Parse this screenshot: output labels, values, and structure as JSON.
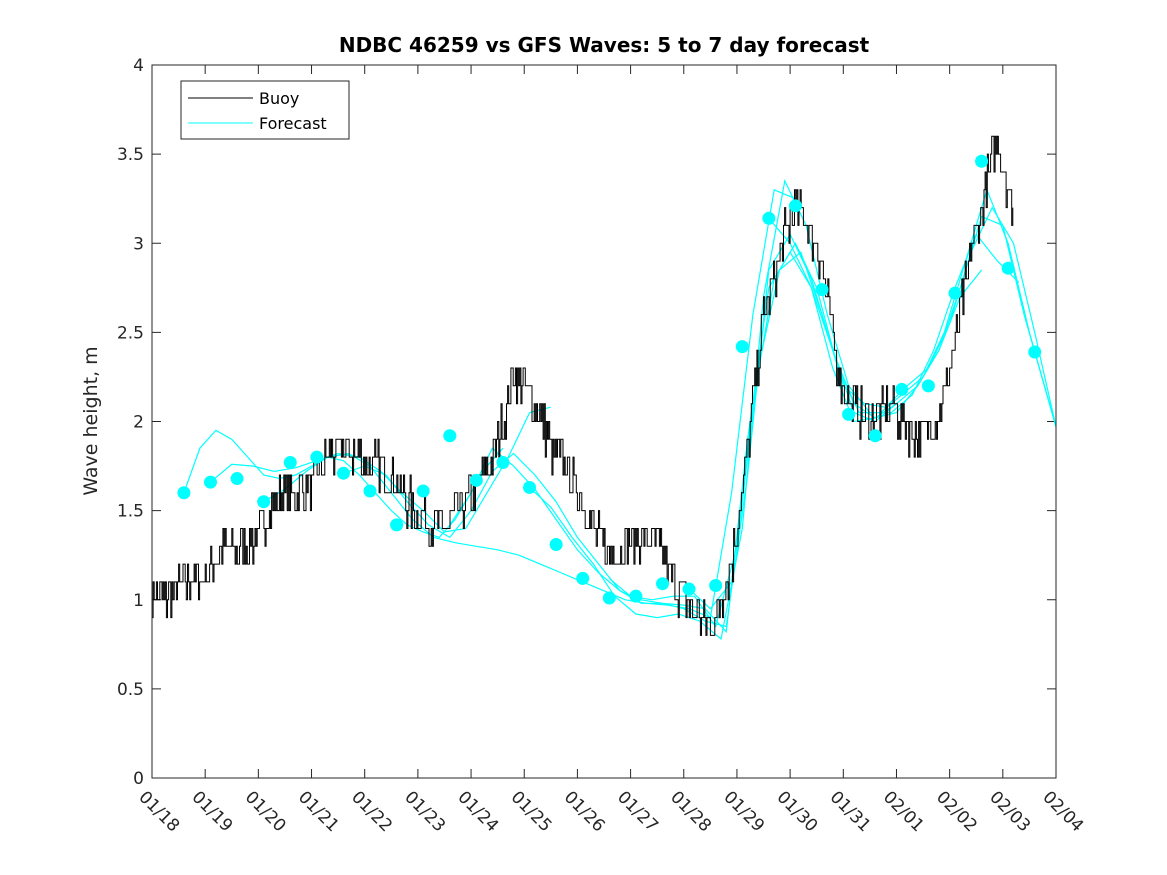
{
  "chart_data": {
    "type": "line",
    "title": "NDBC 46259 vs GFS Waves: 5 to 7 day forecast",
    "xlabel": "",
    "ylabel": "Wave height, m",
    "xlim": [
      0,
      17
    ],
    "ylim": [
      0,
      4
    ],
    "x_tick_labels": [
      "01/18",
      "01/19",
      "01/20",
      "01/21",
      "01/22",
      "01/23",
      "01/24",
      "01/25",
      "01/26",
      "01/27",
      "01/28",
      "01/29",
      "01/30",
      "01/31",
      "02/01",
      "02/02",
      "02/03",
      "02/04"
    ],
    "y_ticks": [
      0,
      0.5,
      1,
      1.5,
      2,
      2.5,
      3,
      3.5,
      4
    ],
    "y_tick_labels": [
      "0",
      "0.5",
      "1",
      "1.5",
      "2",
      "2.5",
      "3",
      "3.5",
      "4"
    ],
    "legend": {
      "position": "top-left",
      "entries": [
        "Buoy",
        "Forecast"
      ]
    },
    "colors": {
      "buoy": "#000000",
      "forecast": "#00ffff",
      "axes": "#262626"
    },
    "buoy_anchors": [
      [
        0.0,
        1.05
      ],
      [
        0.3,
        1.0
      ],
      [
        0.6,
        1.08
      ],
      [
        1.0,
        1.15
      ],
      [
        1.3,
        1.3
      ],
      [
        1.6,
        1.28
      ],
      [
        2.0,
        1.35
      ],
      [
        2.3,
        1.55
      ],
      [
        2.6,
        1.6
      ],
      [
        3.0,
        1.65
      ],
      [
        3.3,
        1.8
      ],
      [
        3.6,
        1.85
      ],
      [
        3.9,
        1.8
      ],
      [
        4.2,
        1.75
      ],
      [
        4.5,
        1.7
      ],
      [
        4.8,
        1.55
      ],
      [
        5.2,
        1.45
      ],
      [
        5.5,
        1.4
      ],
      [
        5.8,
        1.5
      ],
      [
        6.1,
        1.65
      ],
      [
        6.4,
        1.8
      ],
      [
        6.6,
        2.0
      ],
      [
        6.8,
        2.25
      ],
      [
        7.0,
        2.2
      ],
      [
        7.2,
        2.1
      ],
      [
        7.5,
        1.85
      ],
      [
        7.8,
        1.75
      ],
      [
        8.0,
        1.6
      ],
      [
        8.3,
        1.4
      ],
      [
        8.6,
        1.25
      ],
      [
        8.9,
        1.3
      ],
      [
        9.2,
        1.35
      ],
      [
        9.5,
        1.3
      ],
      [
        9.8,
        1.1
      ],
      [
        10.0,
        1.0
      ],
      [
        10.3,
        0.9
      ],
      [
        10.5,
        0.82
      ],
      [
        10.7,
        1.0
      ],
      [
        10.9,
        1.2
      ],
      [
        11.1,
        1.6
      ],
      [
        11.3,
        2.1
      ],
      [
        11.5,
        2.6
      ],
      [
        11.7,
        2.8
      ],
      [
        11.9,
        3.05
      ],
      [
        12.1,
        3.2
      ],
      [
        12.3,
        3.1
      ],
      [
        12.5,
        3.0
      ],
      [
        12.7,
        2.7
      ],
      [
        12.9,
        2.3
      ],
      [
        13.1,
        2.1
      ],
      [
        13.3,
        2.05
      ],
      [
        13.6,
        2.0
      ],
      [
        13.9,
        2.1
      ],
      [
        14.2,
        1.95
      ],
      [
        14.5,
        1.9
      ],
      [
        14.8,
        2.05
      ],
      [
        15.0,
        2.3
      ],
      [
        15.2,
        2.6
      ],
      [
        15.4,
        2.95
      ],
      [
        15.6,
        3.2
      ],
      [
        15.8,
        3.5
      ],
      [
        15.9,
        3.6
      ],
      [
        16.1,
        3.3
      ],
      [
        16.2,
        3.2
      ]
    ],
    "buoy_noise_amplitude": 0.12,
    "forecast_points": {
      "x": [
        0.6,
        1.1,
        1.6,
        2.1,
        2.6,
        3.1,
        3.6,
        4.1,
        4.6,
        5.1,
        5.6,
        6.1,
        6.6,
        7.1,
        7.6,
        8.1,
        8.6,
        9.1,
        9.6,
        10.1,
        10.6,
        11.1,
        11.6,
        12.1,
        12.6,
        13.1,
        13.6,
        14.1,
        14.6,
        15.1,
        15.6,
        16.1,
        16.6
      ],
      "y": [
        1.6,
        1.66,
        1.68,
        1.55,
        1.77,
        1.8,
        1.71,
        1.61,
        1.42,
        1.61,
        1.92,
        1.67,
        1.77,
        1.63,
        1.31,
        1.12,
        1.01,
        1.02,
        1.09,
        1.06,
        1.08,
        2.42,
        3.14,
        3.21,
        2.74,
        2.04,
        1.92,
        2.18,
        2.2,
        2.72,
        3.46,
        2.86,
        2.39
      ]
    },
    "forecast_runs": [
      {
        "x": [
          0.6,
          0.9,
          1.2,
          1.5,
          1.8,
          2.1,
          2.4,
          2.7,
          3.0,
          3.3,
          3.6,
          3.9,
          4.2,
          4.5,
          4.8,
          5.1,
          5.4,
          5.7,
          6.0,
          6.3,
          6.6
        ],
        "y": [
          1.6,
          1.85,
          1.95,
          1.9,
          1.8,
          1.7,
          1.68,
          1.7,
          1.75,
          1.8,
          1.78,
          1.7,
          1.6,
          1.5,
          1.42,
          1.38,
          1.35,
          1.45,
          1.6,
          1.75,
          1.85
        ]
      },
      {
        "x": [
          1.1,
          1.5,
          1.9,
          2.3,
          2.7,
          3.1,
          3.5,
          3.9,
          4.3,
          4.7,
          5.1,
          5.5,
          5.9,
          6.3,
          6.7,
          7.1,
          7.5
        ],
        "y": [
          1.66,
          1.76,
          1.75,
          1.72,
          1.74,
          1.78,
          1.82,
          1.8,
          1.72,
          1.6,
          1.5,
          1.38,
          1.4,
          1.6,
          1.8,
          2.05,
          2.08
        ]
      },
      {
        "x": [
          2.1,
          2.5,
          2.9,
          3.3,
          3.7,
          4.1,
          4.5,
          4.9,
          5.3,
          5.7,
          6.1,
          6.5,
          6.9,
          7.3,
          7.7,
          8.1,
          8.5,
          8.9,
          9.3,
          9.7,
          10.1,
          10.5,
          10.9,
          11.3,
          11.7,
          12.1
        ],
        "y": [
          1.55,
          1.62,
          1.72,
          1.8,
          1.82,
          1.75,
          1.6,
          1.45,
          1.35,
          1.32,
          1.3,
          1.28,
          1.25,
          1.2,
          1.15,
          1.1,
          1.05,
          1.0,
          0.98,
          0.97,
          0.95,
          0.9,
          1.6,
          2.6,
          3.3,
          3.25
        ]
      },
      {
        "x": [
          3.6,
          4.0,
          4.4,
          4.8,
          5.2,
          5.6,
          6.0,
          6.4,
          6.8,
          7.2,
          7.6,
          8.0,
          8.4,
          8.8,
          9.2,
          9.6,
          10.0,
          10.4,
          10.8,
          11.2,
          11.6,
          12.0,
          12.4,
          12.8,
          13.2,
          13.6,
          14.0
        ],
        "y": [
          1.71,
          1.75,
          1.7,
          1.55,
          1.42,
          1.35,
          1.5,
          1.72,
          1.82,
          1.7,
          1.55,
          1.35,
          1.2,
          1.05,
          0.98,
          0.98,
          0.95,
          0.88,
          0.85,
          1.7,
          2.85,
          3.05,
          2.8,
          2.4,
          2.05,
          2.0,
          2.1
        ]
      },
      {
        "x": [
          5.6,
          6.0,
          6.4,
          6.8,
          7.2,
          7.6,
          8.0,
          8.4,
          8.8,
          9.2,
          9.6,
          10.0,
          10.4,
          10.8,
          11.2,
          11.6,
          12.0,
          12.4,
          12.8,
          13.2,
          13.6,
          14.0,
          14.4,
          14.8,
          15.2,
          15.6
        ],
        "y": [
          1.42,
          1.6,
          1.85,
          1.75,
          1.62,
          1.45,
          1.28,
          1.15,
          1.05,
          1.0,
          0.98,
          0.97,
          0.95,
          0.82,
          1.9,
          2.75,
          2.95,
          2.75,
          2.4,
          2.1,
          2.02,
          2.05,
          2.2,
          2.4,
          2.7,
          2.85
        ]
      },
      {
        "x": [
          7.1,
          7.5,
          7.9,
          8.3,
          8.7,
          9.1,
          9.5,
          9.9,
          10.3,
          10.7,
          11.1,
          11.5,
          11.9,
          12.3,
          12.7,
          13.1,
          13.5,
          13.9,
          14.3,
          14.7,
          15.1,
          15.5,
          15.9,
          16.3
        ],
        "y": [
          1.63,
          1.52,
          1.35,
          1.2,
          1.02,
          0.92,
          0.9,
          0.92,
          0.88,
          0.78,
          1.4,
          2.7,
          3.35,
          3.1,
          2.6,
          2.2,
          2.05,
          2.05,
          2.15,
          2.4,
          2.75,
          3.05,
          2.9,
          2.78
        ]
      },
      {
        "x": [
          8.6,
          9.0,
          9.4,
          9.8,
          10.2,
          10.6,
          11.0,
          11.4,
          11.8,
          12.2,
          12.6,
          13.0,
          13.4,
          13.8,
          14.2,
          14.6,
          15.0,
          15.4,
          15.8,
          16.2,
          16.6,
          17.0
        ],
        "y": [
          1.12,
          1.02,
          1.0,
          1.02,
          1.02,
          0.85,
          1.3,
          2.3,
          2.85,
          2.95,
          2.6,
          2.2,
          2.1,
          2.08,
          2.2,
          2.3,
          2.55,
          2.95,
          3.2,
          3.0,
          2.5,
          1.97
        ]
      },
      {
        "x": [
          10.1,
          10.5,
          10.9,
          11.3,
          11.7,
          12.1,
          12.5,
          12.9,
          13.3,
          13.7,
          14.1,
          14.5,
          14.9,
          15.3,
          15.7,
          16.1,
          16.5,
          17.0
        ],
        "y": [
          1.06,
          0.95,
          1.1,
          2.1,
          2.8,
          3.0,
          2.75,
          2.3,
          2.05,
          2.05,
          2.15,
          2.25,
          2.5,
          2.9,
          3.3,
          3.0,
          2.5,
          1.97
        ]
      },
      {
        "x": [
          11.6,
          12.0,
          12.4,
          12.8,
          13.2,
          13.6,
          14.0,
          14.4,
          14.8,
          15.2,
          15.6,
          16.0,
          16.4,
          17.0
        ],
        "y": [
          3.14,
          3.0,
          2.75,
          2.3,
          2.0,
          2.02,
          2.1,
          2.2,
          2.4,
          2.75,
          3.15,
          3.1,
          2.6,
          1.97
        ]
      }
    ]
  }
}
